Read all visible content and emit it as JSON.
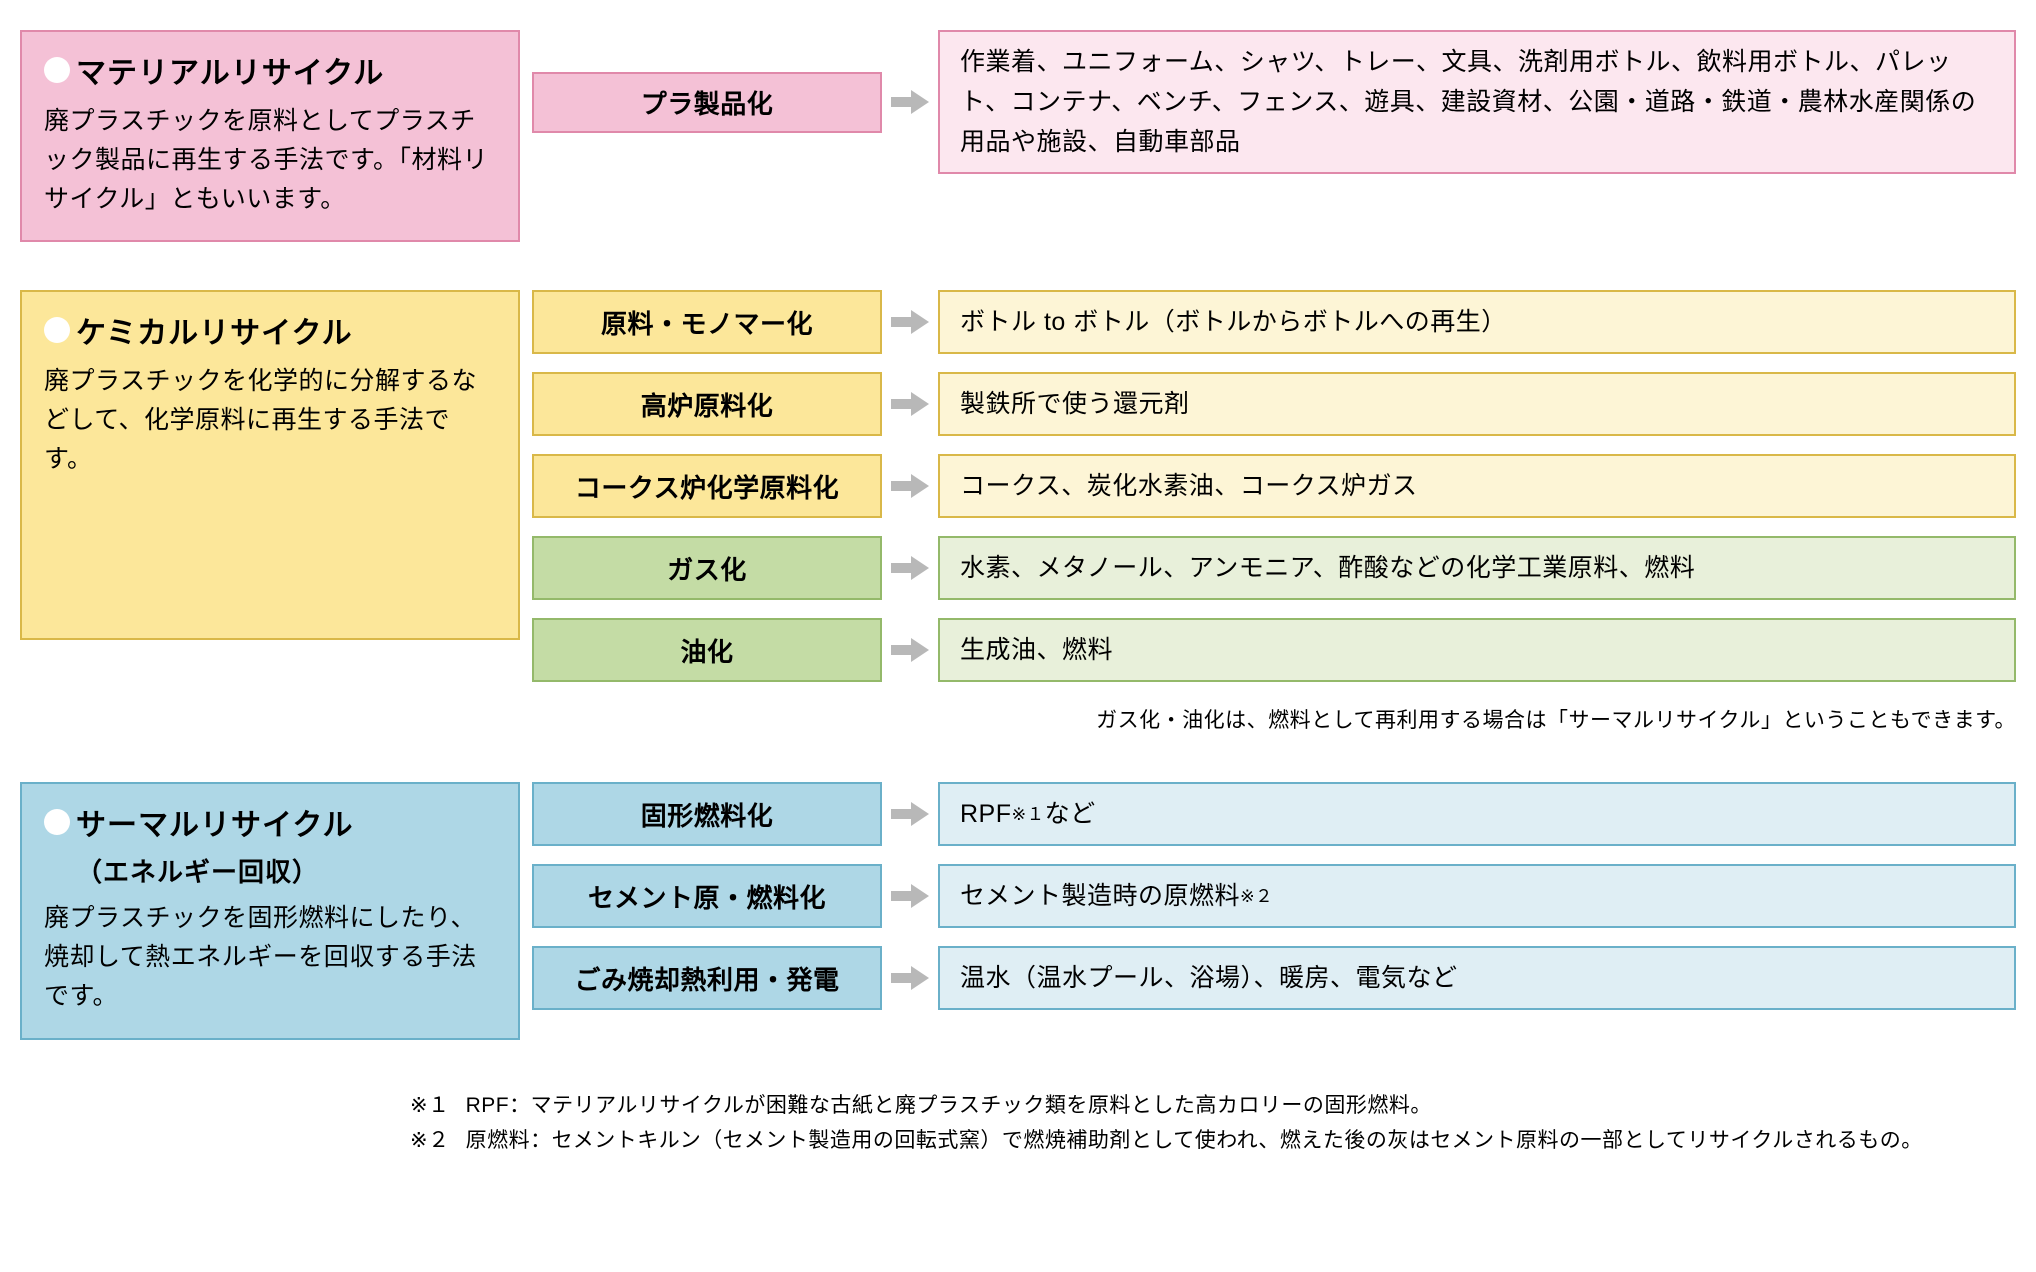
{
  "colors": {
    "pink_bg": "#f4c1d6",
    "pink_border": "#e089aa",
    "pink_light_bg": "#fce7ef",
    "yellow_bg": "#fce79a",
    "yellow_border": "#d9b848",
    "yellow_light_bg": "#fdf5d6",
    "green_bg": "#c4dca5",
    "green_border": "#94b96a",
    "green_light_bg": "#e8f0da",
    "blue_bg": "#aed7e6",
    "blue_border": "#6ab0c9",
    "blue_light_bg": "#dfeef4",
    "arrow": "#b8b8b8",
    "text": "#1a1a1a"
  },
  "sections": [
    {
      "id": "material",
      "title": "マテリアルリサイクル",
      "subtitle": "",
      "desc": "廃プラスチックを原料としてプラスチック製品に再生する手法です。「材料リサイクル」ともいいます。",
      "box_bg": "pink_bg",
      "box_border": "pink_border",
      "rows": [
        {
          "process": "プラ製品化",
          "process_bg": "pink_bg",
          "process_border": "pink_border",
          "output": "作業着、ユニフォーム、シャツ、トレー、文具、洗剤用ボトル、飲料用ボトル、パレット、コンテナ、ベンチ、フェンス、遊具、建設資材、公園・道路・鉄道・農林水産関係の用品や施設、自動車部品",
          "output_bg": "pink_light_bg",
          "output_border": "pink_border",
          "tall": true
        }
      ]
    },
    {
      "id": "chemical",
      "title": "ケミカルリサイクル",
      "subtitle": "",
      "desc": "廃プラスチックを化学的に分解するなどして、化学原料に再生する手法です。",
      "box_bg": "yellow_bg",
      "box_border": "yellow_border",
      "rows": [
        {
          "process": "原料・モノマー化",
          "process_bg": "yellow_bg",
          "process_border": "yellow_border",
          "output": "ボトル to ボトル（ボトルからボトルへの再生）",
          "output_bg": "yellow_light_bg",
          "output_border": "yellow_border"
        },
        {
          "process": "高炉原料化",
          "process_bg": "yellow_bg",
          "process_border": "yellow_border",
          "output": "製鉄所で使う還元剤",
          "output_bg": "yellow_light_bg",
          "output_border": "yellow_border"
        },
        {
          "process": "コークス炉化学原料化",
          "process_bg": "yellow_bg",
          "process_border": "yellow_border",
          "output": "コークス、炭化水素油、コークス炉ガス",
          "output_bg": "yellow_light_bg",
          "output_border": "yellow_border"
        },
        {
          "process": "ガス化",
          "process_bg": "green_bg",
          "process_border": "green_border",
          "output": "水素、メタノール、アンモニア、酢酸などの化学工業原料、燃料",
          "output_bg": "green_light_bg",
          "output_border": "green_border"
        },
        {
          "process": "油化",
          "process_bg": "green_bg",
          "process_border": "green_border",
          "output": "生成油、燃料",
          "output_bg": "green_light_bg",
          "output_border": "green_border"
        }
      ],
      "note": "ガス化・油化は、燃料として再利用する場合は「サーマルリサイクル」ということもできます。"
    },
    {
      "id": "thermal",
      "title": "サーマルリサイクル",
      "subtitle": "（エネルギー回収）",
      "desc": "廃プラスチックを固形燃料にしたり、焼却して熱エネルギーを回収する手法です。",
      "box_bg": "blue_bg",
      "box_border": "blue_border",
      "rows": [
        {
          "process": "固形燃料化",
          "process_bg": "blue_bg",
          "process_border": "blue_border",
          "output": "RPF<sup>※１</sup>など",
          "output_bg": "blue_light_bg",
          "output_border": "blue_border",
          "html": true
        },
        {
          "process": "セメント原・燃料化",
          "process_bg": "blue_bg",
          "process_border": "blue_border",
          "output": "セメント製造時の原燃料<sup>※２</sup>",
          "output_bg": "blue_light_bg",
          "output_border": "blue_border",
          "html": true
        },
        {
          "process": "ごみ焼却熱利用・発電",
          "process_bg": "blue_bg",
          "process_border": "blue_border",
          "output": "温水（温水プール、浴場）、暖房、電気など",
          "output_bg": "blue_light_bg",
          "output_border": "blue_border"
        }
      ]
    }
  ],
  "footnotes": [
    {
      "marker": "※１",
      "text": "RPF：マテリアルリサイクルが困難な古紙と廃プラスチック類を原料とした高カロリーの固形燃料。"
    },
    {
      "marker": "※２",
      "text": "原燃料：セメントキルン（セメント製造用の回転式窯）で燃焼補助剤として使われ、燃えた後の灰はセメント原料の一部としてリサイクルされるもの。"
    }
  ]
}
